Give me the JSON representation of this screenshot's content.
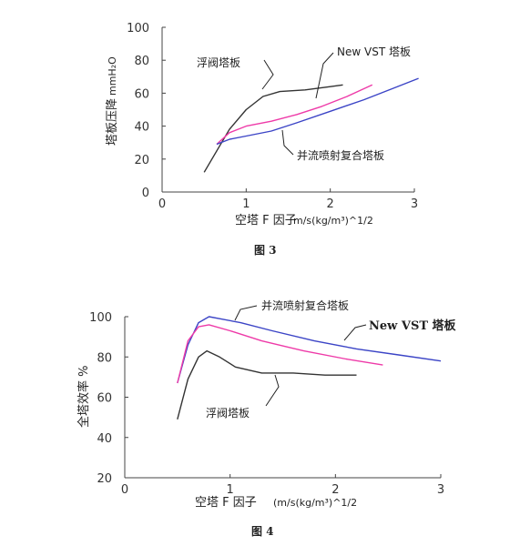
{
  "chart_data": [
    {
      "type": "line",
      "caption": "图 3",
      "ylabel": "塔板压降",
      "yunit": "mmH₂O",
      "xlabel": "空塔 F 因子",
      "xunit": "m/s(kg/m³)^1/2",
      "xlim": [
        0,
        3
      ],
      "ylim": [
        0,
        100
      ],
      "xticks": [
        "0",
        "1",
        "2",
        "3"
      ],
      "yticks": [
        "0",
        "20",
        "40",
        "60",
        "80",
        "100"
      ],
      "series": [
        {
          "name": "浮阀塔板",
          "color": "#333333",
          "x": [
            0.5,
            0.65,
            0.8,
            1.0,
            1.2,
            1.4,
            1.7,
            2.0,
            2.15
          ],
          "y": [
            12,
            25,
            38,
            50,
            58,
            61,
            62,
            64,
            65
          ]
        },
        {
          "name": "New VST 塔板",
          "color": "#ee3aa8",
          "x": [
            0.65,
            0.8,
            1.0,
            1.3,
            1.6,
            1.9,
            2.2,
            2.5
          ],
          "y": [
            29,
            36,
            40,
            43,
            47,
            52,
            58,
            65
          ]
        },
        {
          "name": "并流喷射复合塔板",
          "color": "#3b44c6",
          "x": [
            0.65,
            0.8,
            1.0,
            1.3,
            1.6,
            2.0,
            2.4,
            2.75,
            3.05
          ],
          "y": [
            29,
            32,
            34,
            37,
            42,
            49,
            56,
            63,
            69
          ]
        }
      ],
      "annotations": [
        {
          "text": "浮阀塔板",
          "bold": false
        },
        {
          "text": "New VST 塔板",
          "bold": false
        },
        {
          "text": "并流喷射复合塔板",
          "bold": false
        }
      ]
    },
    {
      "type": "line",
      "caption": "图 4",
      "ylabel": "全塔效率 %",
      "xlabel": "空塔 F 因子",
      "xunit": "(m/s(kg/m³)^1/2",
      "xlim": [
        0,
        3
      ],
      "ylim": [
        20,
        100
      ],
      "xticks": [
        "0",
        "1",
        "2",
        "3"
      ],
      "yticks": [
        "20",
        "40",
        "60",
        "80",
        "100"
      ],
      "series": [
        {
          "name": "并流喷射复合塔板",
          "color": "#3b44c6",
          "x": [
            0.5,
            0.6,
            0.7,
            0.8,
            0.9,
            1.1,
            1.4,
            1.8,
            2.2,
            2.6,
            3.0
          ],
          "y": [
            67,
            86,
            97,
            100,
            99,
            97,
            93,
            88,
            84,
            81,
            78
          ]
        },
        {
          "name": "New VST 塔板",
          "color": "#ee3aa8",
          "x": [
            0.5,
            0.6,
            0.7,
            0.8,
            1.0,
            1.3,
            1.7,
            2.1,
            2.45
          ],
          "y": [
            67,
            88,
            95,
            96,
            93,
            88,
            83,
            79,
            76
          ]
        },
        {
          "name": "浮阀塔板",
          "color": "#333333",
          "x": [
            0.5,
            0.6,
            0.7,
            0.78,
            0.9,
            1.05,
            1.3,
            1.6,
            1.9,
            2.2
          ],
          "y": [
            49,
            69,
            80,
            83,
            80,
            75,
            72,
            72,
            71,
            71
          ]
        }
      ],
      "annotations": [
        {
          "text": "并流喷射复合塔板",
          "bold": false
        },
        {
          "text": "New VST 塔板",
          "bold": true
        },
        {
          "text": "浮阀塔板",
          "bold": false
        }
      ]
    }
  ]
}
